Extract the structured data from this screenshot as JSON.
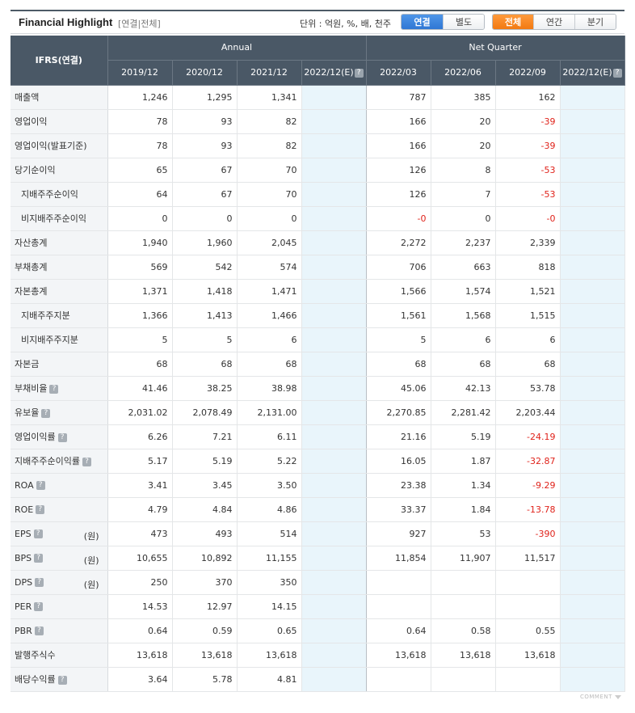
{
  "header": {
    "title": "Financial Highlight",
    "subtitle": "[연결|전체]",
    "unit": "단위 : 억원, %, 배, 천주",
    "consol_toggle": [
      {
        "label": "연결",
        "active": true
      },
      {
        "label": "별도",
        "active": false
      }
    ],
    "period_toggle": [
      {
        "label": "전체",
        "active": true
      },
      {
        "label": "연간",
        "active": false
      },
      {
        "label": "분기",
        "active": false
      }
    ]
  },
  "table": {
    "corner": "IFRS(연결)",
    "group_annual": "Annual",
    "group_quarter": "Net Quarter",
    "columns": [
      "2019/12",
      "2020/12",
      "2021/12",
      "2022/12(E)",
      "2022/03",
      "2022/06",
      "2022/09",
      "2022/12(E)"
    ],
    "help_glyph": "?",
    "rows": [
      {
        "label": "매출액",
        "values": [
          "1,246",
          "1,295",
          "1,341",
          "",
          "787",
          "385",
          "162",
          ""
        ]
      },
      {
        "label": "영업이익",
        "values": [
          "78",
          "93",
          "82",
          "",
          "166",
          "20",
          "-39",
          ""
        ]
      },
      {
        "label": "영업이익(발표기준)",
        "values": [
          "78",
          "93",
          "82",
          "",
          "166",
          "20",
          "-39",
          ""
        ]
      },
      {
        "label": "당기순이익",
        "values": [
          "65",
          "67",
          "70",
          "",
          "126",
          "8",
          "-53",
          ""
        ]
      },
      {
        "label": "지배주주순이익",
        "indent": true,
        "values": [
          "64",
          "67",
          "70",
          "",
          "126",
          "7",
          "-53",
          ""
        ]
      },
      {
        "label": "비지배주주순이익",
        "indent": true,
        "values": [
          "0",
          "0",
          "0",
          "",
          "-0",
          "0",
          "-0",
          ""
        ]
      },
      {
        "label": "자산총계",
        "values": [
          "1,940",
          "1,960",
          "2,045",
          "",
          "2,272",
          "2,237",
          "2,339",
          ""
        ]
      },
      {
        "label": "부채총계",
        "values": [
          "569",
          "542",
          "574",
          "",
          "706",
          "663",
          "818",
          ""
        ]
      },
      {
        "label": "자본총계",
        "values": [
          "1,371",
          "1,418",
          "1,471",
          "",
          "1,566",
          "1,574",
          "1,521",
          ""
        ]
      },
      {
        "label": "지배주주지분",
        "indent": true,
        "values": [
          "1,366",
          "1,413",
          "1,466",
          "",
          "1,561",
          "1,568",
          "1,515",
          ""
        ]
      },
      {
        "label": "비지배주주지분",
        "indent": true,
        "values": [
          "5",
          "5",
          "6",
          "",
          "5",
          "6",
          "6",
          ""
        ]
      },
      {
        "label": "자본금",
        "values": [
          "68",
          "68",
          "68",
          "",
          "68",
          "68",
          "68",
          ""
        ]
      },
      {
        "label": "부채비율",
        "help": true,
        "values": [
          "41.46",
          "38.25",
          "38.98",
          "",
          "45.06",
          "42.13",
          "53.78",
          ""
        ]
      },
      {
        "label": "유보율",
        "help": true,
        "values": [
          "2,031.02",
          "2,078.49",
          "2,131.00",
          "",
          "2,270.85",
          "2,281.42",
          "2,203.44",
          ""
        ]
      },
      {
        "label": "영업이익률",
        "help": true,
        "values": [
          "6.26",
          "7.21",
          "6.11",
          "",
          "21.16",
          "5.19",
          "-24.19",
          ""
        ]
      },
      {
        "label": "지배주주순이익률",
        "help": true,
        "values": [
          "5.17",
          "5.19",
          "5.22",
          "",
          "16.05",
          "1.87",
          "-32.87",
          ""
        ]
      },
      {
        "label": "ROA",
        "help": true,
        "values": [
          "3.41",
          "3.45",
          "3.50",
          "",
          "23.38",
          "1.34",
          "-9.29",
          ""
        ]
      },
      {
        "label": "ROE",
        "help": true,
        "values": [
          "4.79",
          "4.84",
          "4.86",
          "",
          "33.37",
          "1.84",
          "-13.78",
          ""
        ]
      },
      {
        "label": "EPS",
        "help": true,
        "unit": "(원)",
        "values": [
          "473",
          "493",
          "514",
          "",
          "927",
          "53",
          "-390",
          ""
        ]
      },
      {
        "label": "BPS",
        "help": true,
        "unit": "(원)",
        "values": [
          "10,655",
          "10,892",
          "11,155",
          "",
          "11,854",
          "11,907",
          "11,517",
          ""
        ]
      },
      {
        "label": "DPS",
        "help": true,
        "unit": "(원)",
        "values": [
          "250",
          "370",
          "350",
          "",
          "",
          "",
          "",
          ""
        ]
      },
      {
        "label": "PER",
        "help": true,
        "values": [
          "14.53",
          "12.97",
          "14.15",
          "",
          "",
          "",
          "",
          ""
        ]
      },
      {
        "label": "PBR",
        "help": true,
        "values": [
          "0.64",
          "0.59",
          "0.65",
          "",
          "0.64",
          "0.58",
          "0.55",
          ""
        ]
      },
      {
        "label": "발행주식수",
        "values": [
          "13,618",
          "13,618",
          "13,618",
          "",
          "13,618",
          "13,618",
          "13,618",
          ""
        ]
      },
      {
        "label": "배당수익률",
        "help": true,
        "values": [
          "3.64",
          "5.78",
          "4.81",
          "",
          "",
          "",
          "",
          ""
        ]
      }
    ]
  },
  "footer": {
    "comment": "COMMENT"
  },
  "colors": {
    "header_bg": "#4a5866",
    "estimate_bg": "#e9f5fb",
    "negative": "#e0231b",
    "blue_active": "#2f77d4",
    "orange_active": "#f27a12"
  }
}
